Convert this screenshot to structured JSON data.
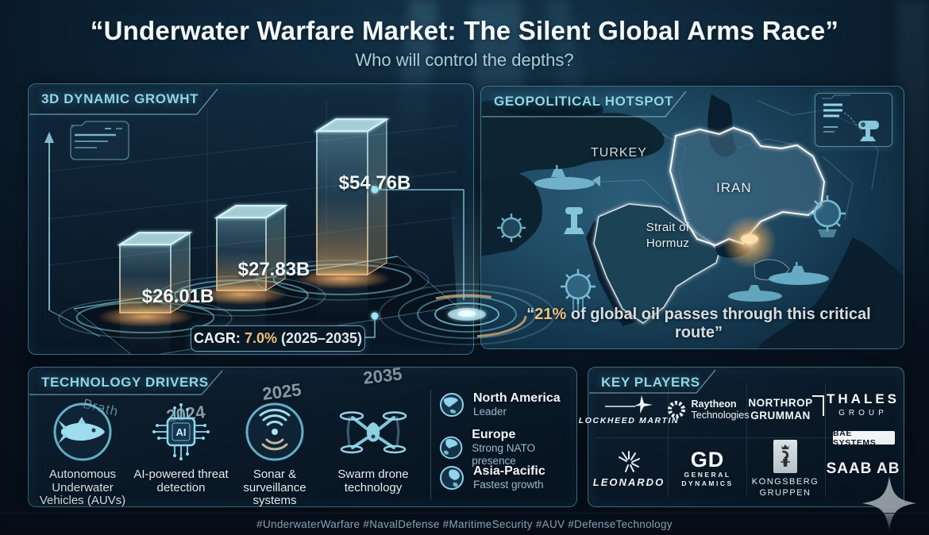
{
  "title": "“Underwater Warfare Market: The Silent Global Arms Race”",
  "subtitle": "Who will control the depths?",
  "colors": {
    "accent_cyan": "#8fd6ea",
    "accent_gold": "#ecc27c",
    "bar_glow_orange": "#f0a860",
    "panel_border": "rgba(110,190,220,0.5)"
  },
  "growth_panel": {
    "header": "3D DYNAMIC GROWHT",
    "axis_label": "Brath",
    "cagr": {
      "label": "CAGR:",
      "value": "7.0%",
      "range": "(2025–2035)"
    }
  },
  "chart_data": {
    "type": "bar",
    "title": "3D DYNAMIC GROWHT",
    "categories": [
      "2024",
      "2025",
      "2035"
    ],
    "values": [
      26.01,
      27.83,
      54.76
    ],
    "value_labels": [
      "$26.01B",
      "$27.83B",
      "$54.76B"
    ],
    "unit": "USD billions",
    "ylabel": "",
    "xlabel": "",
    "annotations": [
      "CAGR: 7.0% (2025–2035)"
    ],
    "legend": false,
    "grid": "faint perspective grid"
  },
  "map_panel": {
    "header": "GEOPOLITICAL HOTSPOT",
    "labels": {
      "turkey": "TURKEY",
      "iran": "IRAN",
      "strait_line1": "Strait of",
      "strait_line2": "Hormuz"
    },
    "quote": {
      "lead": "“",
      "highlight": "21%",
      "rest": " of global oil passes through this critical route”"
    }
  },
  "tech_panel": {
    "header": "TECHNOLOGY DRIVERS",
    "ai_chip_text": "AI",
    "drivers": [
      {
        "icon": "auv-icon",
        "label": "Autonomous Underwater Vehicles (AUVs)"
      },
      {
        "icon": "ai-chip-icon",
        "label": "AI-powered threat detection"
      },
      {
        "icon": "sonar-icon",
        "label": "Sonar & surveillance systems"
      },
      {
        "icon": "swarm-drone-icon",
        "label": "Swarm drone technology"
      }
    ],
    "regions": [
      {
        "name": "North America",
        "status": "Leader"
      },
      {
        "name": "Europe",
        "status": "Strong NATO presence"
      },
      {
        "name": "Asia-Pacific",
        "status": "Fastest growth"
      }
    ]
  },
  "players_panel": {
    "header": "KEY PLAYERS",
    "logos": {
      "lockheed": "LOCKHEED MARTIN",
      "raytheon_1": "Raytheon",
      "raytheon_2": "Technologies",
      "northrop_1": "NORTHROP",
      "northrop_2": "GRUMMAN",
      "thales_1": "THALES",
      "thales_2": "GROUP",
      "bae": "BAE SYSTEMS",
      "leonardo": "LEONARDO",
      "gd": "GD",
      "gd_1": "GENERAL",
      "gd_2": "DYNAMICS",
      "kongsberg_1": "KONGSBERG",
      "kongsberg_2": "GRUPPEN",
      "saab": "SAAB AB"
    }
  },
  "footer": {
    "hashtags": "#UnderwaterWarfare #NavalDefense #MaritimeSecurity #AUV #DefenseTechnology"
  }
}
